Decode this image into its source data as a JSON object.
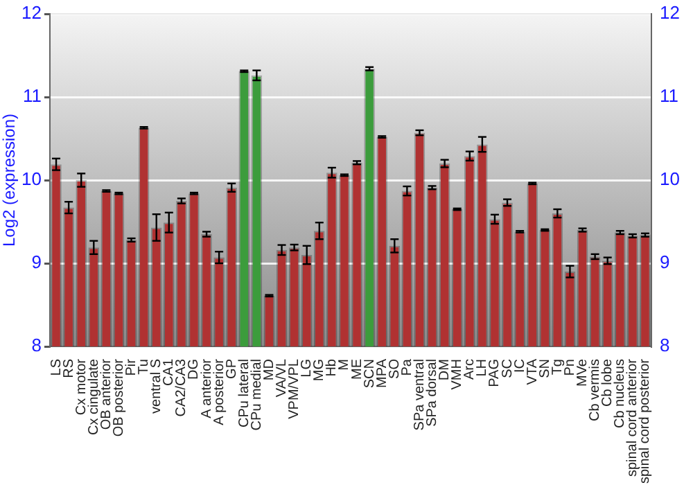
{
  "chart_data": {
    "type": "bar",
    "ylabel": "Log2 (expression)",
    "categories": [
      "LS",
      "RS",
      "Cx motor",
      "Cx cingulate",
      "OB anterior",
      "OB posterior",
      "Pir",
      "Tu",
      "ventral S",
      "CA1",
      "CA2/CA3",
      "DG",
      "A anterior",
      "A posterior",
      "GP",
      "CPu lateral",
      "CPu medial",
      "MD",
      "VA/VL",
      "VPM/VPL",
      "LG",
      "MG",
      "Hb",
      "M",
      "ME",
      "SCN",
      "MPA",
      "SO",
      "Pa",
      "SPa ventral",
      "SPa dorsal",
      "DM",
      "VMH",
      "Arc",
      "LH",
      "PAG",
      "SC",
      "IC",
      "VTA",
      "SN",
      "Tg",
      "Pn",
      "MVe",
      "Cb vermis",
      "Cb lobe",
      "Cb nucleus",
      "spinal cord anterior",
      "spinal cord posterior"
    ],
    "values": [
      10.19,
      9.67,
      10.0,
      9.19,
      9.87,
      9.84,
      9.28,
      10.63,
      9.43,
      9.49,
      9.75,
      9.84,
      9.35,
      9.07,
      9.91,
      11.31,
      11.26,
      8.61,
      9.16,
      9.19,
      9.1,
      9.39,
      10.09,
      10.06,
      10.21,
      11.34,
      10.52,
      9.21,
      9.87,
      10.57,
      9.91,
      10.2,
      9.65,
      10.29,
      10.43,
      9.53,
      9.73,
      9.38,
      9.96,
      9.4,
      9.6,
      8.9,
      9.4,
      9.08,
      9.03,
      9.37,
      9.33,
      9.34
    ],
    "errors": [
      0.07,
      0.07,
      0.08,
      0.08,
      0.01,
      0.01,
      0.02,
      0.01,
      0.16,
      0.12,
      0.03,
      0.01,
      0.03,
      0.07,
      0.05,
      0.01,
      0.06,
      0.01,
      0.06,
      0.035,
      0.11,
      0.1,
      0.06,
      0.01,
      0.02,
      0.02,
      0.01,
      0.08,
      0.055,
      0.03,
      0.02,
      0.045,
      0.01,
      0.055,
      0.09,
      0.055,
      0.04,
      0.01,
      0.01,
      0.01,
      0.05,
      0.07,
      0.02,
      0.03,
      0.04,
      0.02,
      0.02,
      0.02
    ],
    "colors": [
      "#b03232",
      "#b03232",
      "#b03232",
      "#b03232",
      "#b03232",
      "#b03232",
      "#b03232",
      "#b03232",
      "#b03232",
      "#b03232",
      "#b03232",
      "#b03232",
      "#b03232",
      "#b03232",
      "#b03232",
      "#3c9c3c",
      "#3c9c3c",
      "#b03232",
      "#b03232",
      "#b03232",
      "#b03232",
      "#b03232",
      "#b03232",
      "#b03232",
      "#b03232",
      "#3c9c3c",
      "#b03232",
      "#b03232",
      "#b03232",
      "#b03232",
      "#b03232",
      "#b03232",
      "#b03232",
      "#b03232",
      "#b03232",
      "#b03232",
      "#b03232",
      "#b03232",
      "#b03232",
      "#b03232",
      "#b03232",
      "#b03232",
      "#b03232",
      "#b03232",
      "#b03232",
      "#b03232",
      "#b03232",
      "#b03232"
    ],
    "ylim": [
      8,
      12
    ],
    "yticks": [
      8,
      9,
      10,
      11,
      12
    ],
    "y2lim": [
      8,
      12
    ],
    "y2ticks": [
      8,
      9,
      10,
      11,
      12
    ],
    "grid": "y",
    "legend": false
  }
}
